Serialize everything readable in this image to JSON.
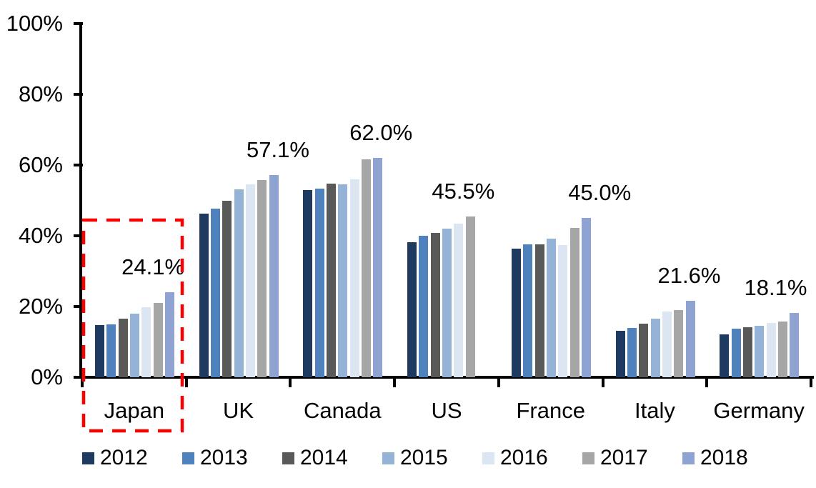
{
  "chart_data": {
    "type": "bar",
    "title": "",
    "xlabel": "",
    "ylabel": "",
    "categories": [
      "Japan",
      "UK",
      "Canada",
      "US",
      "France",
      "Italy",
      "Germany"
    ],
    "series": [
      {
        "name": "2012",
        "color": "#1F3A60",
        "values": [
          14.8,
          46.2,
          53.0,
          38.2,
          36.4,
          13.2,
          12.2
        ]
      },
      {
        "name": "2013",
        "color": "#4F81BD",
        "values": [
          15.0,
          47.7,
          53.3,
          39.9,
          37.6,
          14.0,
          13.7
        ]
      },
      {
        "name": "2014",
        "color": "#595959",
        "values": [
          16.5,
          49.8,
          54.7,
          40.9,
          37.6,
          15.2,
          14.1
        ]
      },
      {
        "name": "2015",
        "color": "#95B3D7",
        "values": [
          17.9,
          53.2,
          54.5,
          42.0,
          39.2,
          16.6,
          14.5
        ]
      },
      {
        "name": "2016",
        "color": "#DCE6F2",
        "values": [
          19.8,
          54.6,
          56.0,
          43.5,
          37.3,
          18.6,
          15.3
        ]
      },
      {
        "name": "2017",
        "color": "#A6A6A6",
        "values": [
          21.0,
          55.8,
          61.7,
          45.5,
          42.3,
          18.9,
          15.7
        ]
      },
      {
        "name": "2018",
        "color": "#8EA3D2",
        "values": [
          24.1,
          57.1,
          62.0,
          null,
          45.0,
          21.6,
          18.1
        ]
      }
    ],
    "data_labels": [
      {
        "category": "Japan",
        "text": "24.1%",
        "pos": 0.68
      },
      {
        "category": "UK",
        "text": "57.1%",
        "pos": 0.88
      },
      {
        "category": "Canada",
        "text": "62.0%",
        "pos": 0.87
      },
      {
        "category": "US",
        "text": "45.5%",
        "pos": 0.66
      },
      {
        "category": "France",
        "text": "45.0%",
        "pos": 0.97
      },
      {
        "category": "Italy",
        "text": "21.6%",
        "pos": 0.83
      },
      {
        "category": "Germany",
        "text": "18.1%",
        "pos": 0.66
      }
    ],
    "y_ticks": [
      "100%",
      "80%",
      "60%",
      "40%",
      "20%",
      "0%"
    ],
    "ylim": [
      0,
      100
    ],
    "y_tick_step": 20,
    "grid": false,
    "legend_position": "bottom",
    "axis_color": "#000000",
    "highlight": {
      "category": "Japan",
      "style": "red-dashed-rectangle",
      "color": "#FF0000"
    }
  }
}
